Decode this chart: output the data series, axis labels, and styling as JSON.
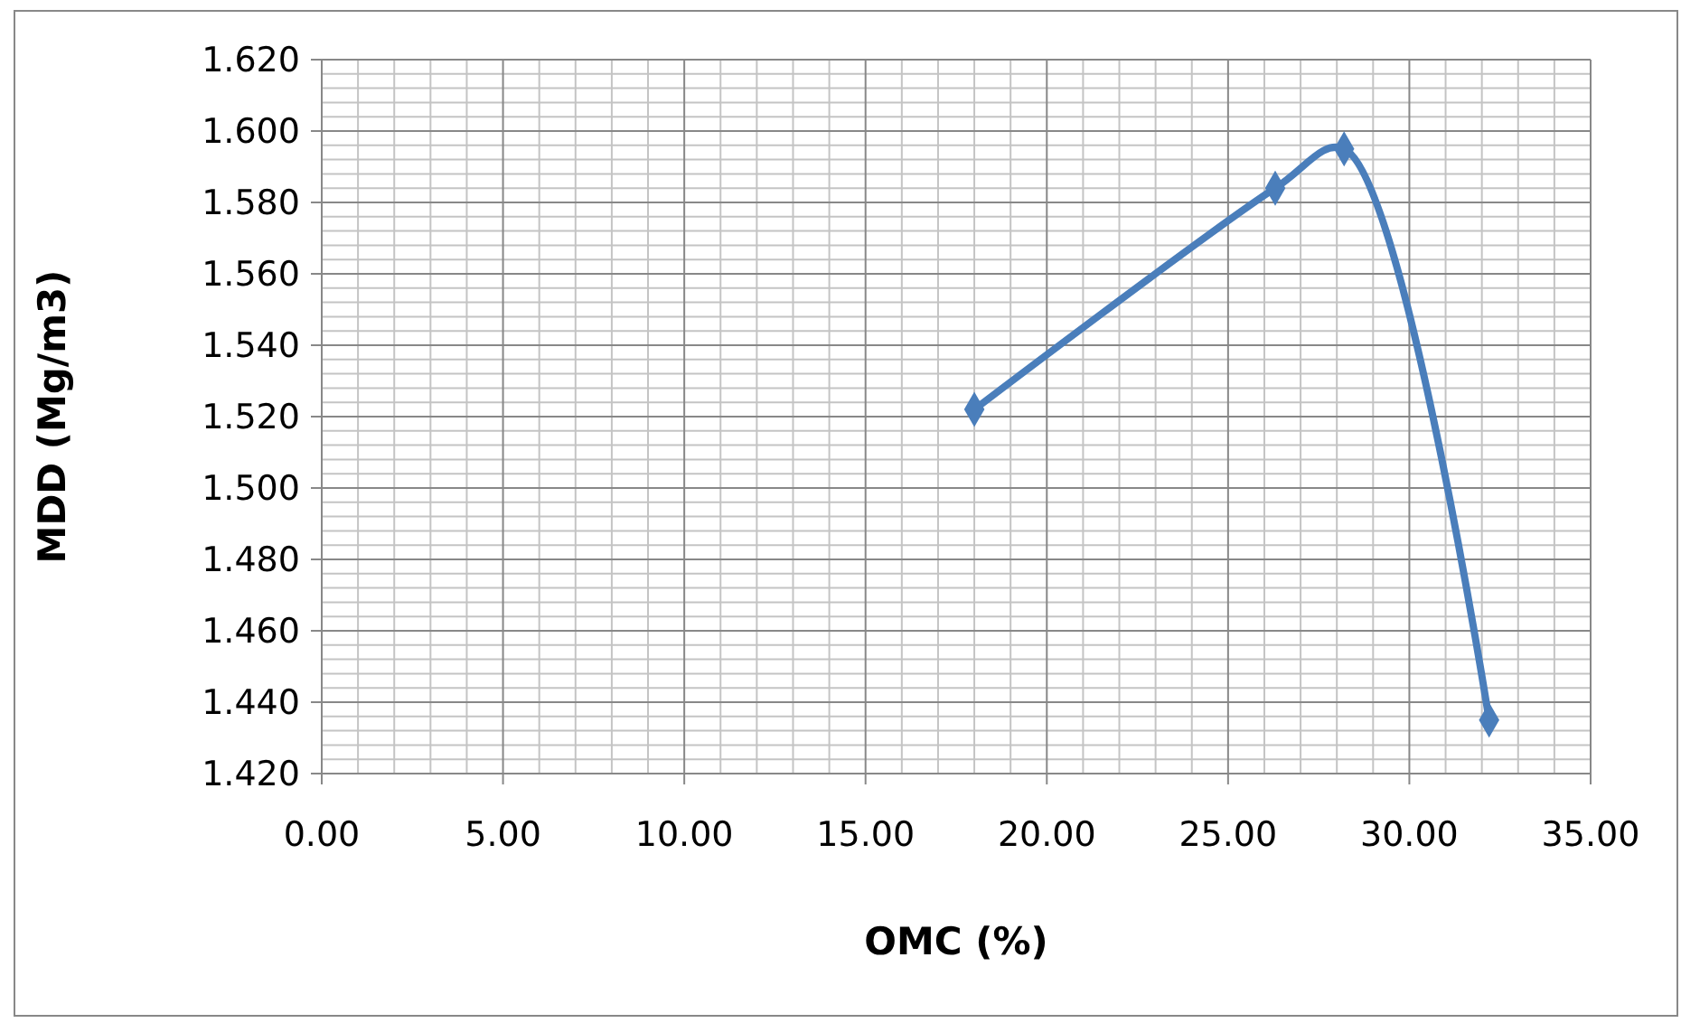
{
  "chart_data": {
    "type": "line",
    "xlabel": "OMC (%)",
    "ylabel": "MDD (Mg/m3)",
    "x": [
      18.0,
      26.3,
      28.2,
      32.2
    ],
    "series": [
      {
        "color": "#4a7ebb",
        "values": [
          1.522,
          1.584,
          1.595,
          1.435
        ]
      }
    ],
    "xlim": [
      0,
      35
    ],
    "ylim": [
      1.42,
      1.62
    ],
    "xticks": [
      {
        "value": 0,
        "label": "0.00"
      },
      {
        "value": 5,
        "label": "5.00"
      },
      {
        "value": 10,
        "label": "10.00"
      },
      {
        "value": 15,
        "label": "15.00"
      },
      {
        "value": 20,
        "label": "20.00"
      },
      {
        "value": 25,
        "label": "25.00"
      },
      {
        "value": 30,
        "label": "30.00"
      },
      {
        "value": 35,
        "label": "35.00"
      }
    ],
    "yticks": [
      {
        "value": 1.42,
        "label": "1.420"
      },
      {
        "value": 1.44,
        "label": "1.440"
      },
      {
        "value": 1.46,
        "label": "1.460"
      },
      {
        "value": 1.48,
        "label": "1.480"
      },
      {
        "value": 1.5,
        "label": "1.500"
      },
      {
        "value": 1.52,
        "label": "1.520"
      },
      {
        "value": 1.54,
        "label": "1.540"
      },
      {
        "value": 1.56,
        "label": "1.560"
      },
      {
        "value": 1.58,
        "label": "1.580"
      },
      {
        "value": 1.6,
        "label": "1.600"
      },
      {
        "value": 1.62,
        "label": "1.620"
      }
    ],
    "grid": true,
    "marker": "diamond",
    "line_style": "solid"
  }
}
